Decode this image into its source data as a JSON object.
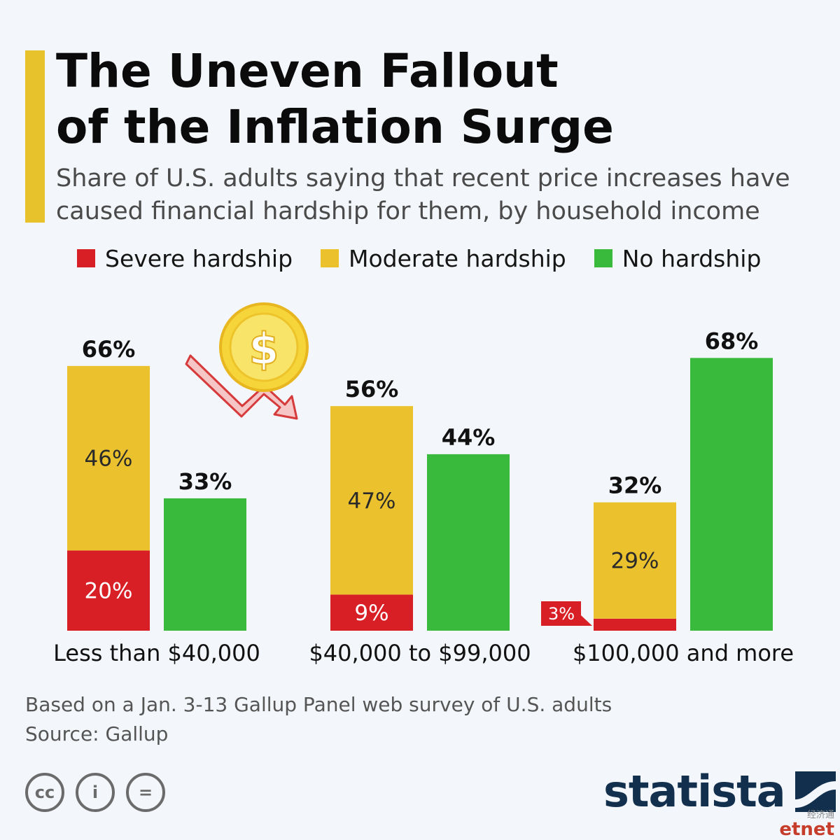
{
  "header": {
    "title_lines": [
      "The Uneven Fallout",
      "of the Inflation Surge"
    ],
    "subtitle_lines": [
      "Share of U.S. adults saying that recent price increases have",
      "caused financial hardship for them, by household income"
    ]
  },
  "legend": {
    "items": [
      {
        "label": "Severe hardship",
        "color": "#d91f26"
      },
      {
        "label": "Moderate hardship",
        "color": "#ebc22e"
      },
      {
        "label": "No hardship",
        "color": "#3aba3c"
      }
    ]
  },
  "chart_data": {
    "type": "bar",
    "stacked_first_bar": true,
    "categories": [
      "Less than $40,000",
      "$40,000 to $99,000",
      "$100,000 and more"
    ],
    "series": [
      {
        "name": "Severe hardship",
        "values": [
          20,
          9,
          3
        ],
        "labels": [
          "20%",
          "9%",
          "3%"
        ],
        "color": "#d91f26"
      },
      {
        "name": "Moderate hardship",
        "values": [
          46,
          47,
          29
        ],
        "labels": [
          "46%",
          "47%",
          "29%"
        ],
        "color": "#ebc22e"
      },
      {
        "name": "No hardship",
        "values": [
          33,
          44,
          68
        ],
        "labels": [
          "33%",
          "44%",
          "68%"
        ],
        "color": "#3aba3c"
      }
    ],
    "totals": {
      "values": [
        66,
        56,
        32
      ],
      "labels": [
        "66%",
        "56%",
        "32%"
      ]
    },
    "ylim": [
      0,
      100
    ],
    "grid": false,
    "legend_position": "top"
  },
  "footer": {
    "note": "Based on a Jan. 3-13 Gallup Panel web survey of U.S. adults",
    "source": "Source: Gallup",
    "cc_icons": [
      {
        "icon": "cc-icon",
        "text": "cc"
      },
      {
        "icon": "attribution-icon",
        "text": "i"
      },
      {
        "icon": "no-derivatives-icon",
        "text": "="
      }
    ],
    "brand": "statista",
    "watermark_cn": "经济通",
    "watermark_en": "etnet"
  }
}
